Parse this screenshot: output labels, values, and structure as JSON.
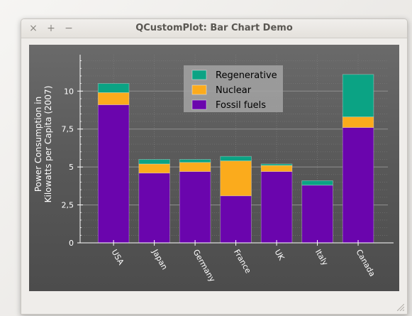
{
  "window": {
    "title": "QCustomPlot: Bar Chart Demo",
    "close_glyph": "×",
    "maximize_glyph": "+",
    "minimize_glyph": "−"
  },
  "chart_data": {
    "type": "bar",
    "stacked": true,
    "categories": [
      "USA",
      "Japan",
      "Germany",
      "France",
      "UK",
      "Italy",
      "Canada"
    ],
    "series": [
      {
        "name": "Fossil fuels",
        "color": "#6a05ad",
        "values": [
          9.1,
          4.6,
          4.7,
          3.1,
          4.7,
          3.8,
          7.6
        ]
      },
      {
        "name": "Nuclear",
        "color": "#fbab1c",
        "values": [
          0.8,
          0.6,
          0.6,
          2.3,
          0.4,
          0.0,
          0.7
        ]
      },
      {
        "name": "Regenerative",
        "color": "#0ba384",
        "values": [
          0.6,
          0.3,
          0.2,
          0.3,
          0.1,
          0.3,
          2.8
        ]
      }
    ],
    "ylabel_line1": "Power Consumption in",
    "ylabel_line2": "Kilowatts per Capita (2007)",
    "xlabel": "",
    "ylim": [
      0,
      12.4
    ],
    "yticks": [
      0,
      2.5,
      5,
      7.5,
      10
    ],
    "ytick_labels": [
      "0",
      "2,5",
      "5",
      "7,5",
      "10"
    ],
    "grid": true,
    "legend_position": "top-center",
    "legend_order": [
      "Regenerative",
      "Nuclear",
      "Fossil fuels"
    ],
    "colors": {
      "background": "#585858",
      "axis": "#ffffff",
      "grid": "#8c8c8c",
      "legend_bg": "#a0a0a0"
    }
  }
}
